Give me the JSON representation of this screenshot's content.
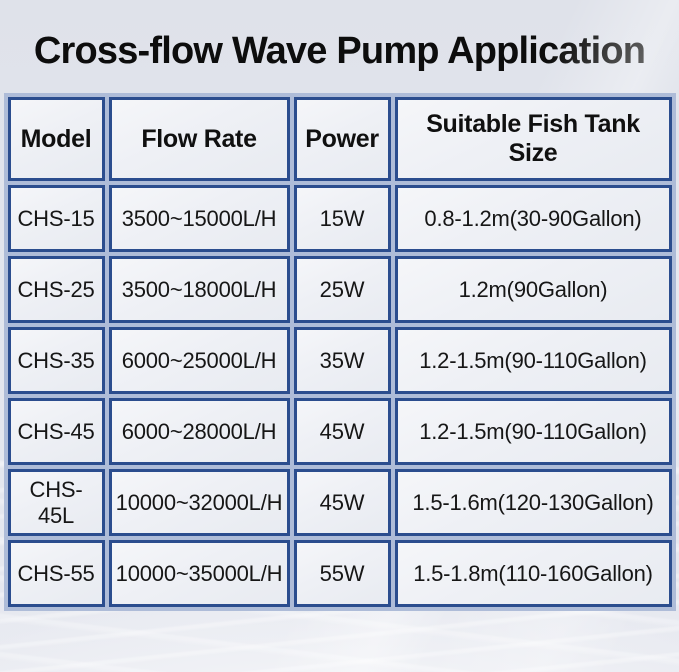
{
  "title": "Cross-flow Wave Pump Application",
  "chart_data": {
    "type": "table",
    "title": "Cross-flow Wave Pump Application",
    "columns": [
      "Model",
      "Flow Rate",
      "Power",
      "Suitable Fish Tank Size"
    ],
    "rows": [
      [
        "CHS-15",
        "3500~15000L/H",
        "15W",
        "0.8-1.2m(30-90Gallon)"
      ],
      [
        "CHS-25",
        "3500~18000L/H",
        "25W",
        "1.2m(90Gallon)"
      ],
      [
        "CHS-35",
        "6000~25000L/H",
        "35W",
        "1.2-1.5m(90-110Gallon)"
      ],
      [
        "CHS-45",
        "6000~28000L/H",
        "45W",
        "1.2-1.5m(90-110Gallon)"
      ],
      [
        "CHS-45L",
        "10000~32000L/H",
        "45W",
        "1.5-1.6m(120-130Gallon)"
      ],
      [
        "CHS-55",
        "10000~35000L/H",
        "55W",
        "1.5-1.8m(110-160Gallon)"
      ]
    ]
  },
  "colors": {
    "cell_border": "#2b4d8e",
    "grid_gap": "#aebcd8",
    "page_background": "#e3e6ee",
    "text": "#141414"
  }
}
